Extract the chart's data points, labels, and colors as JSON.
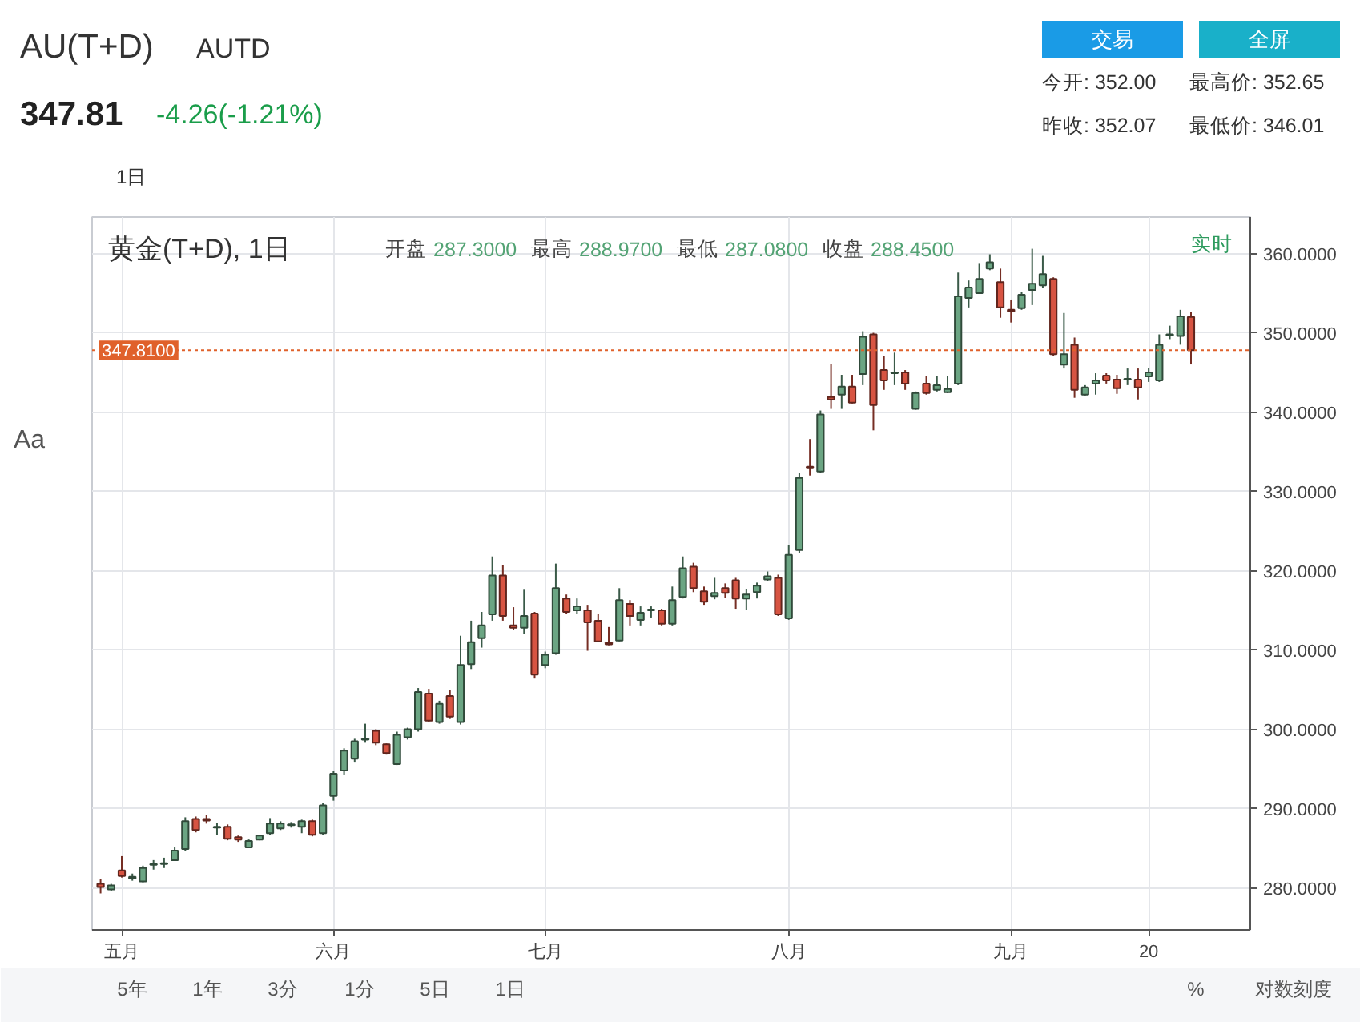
{
  "chart_data": {
    "type": "candlestick",
    "title": "AU(T+D)",
    "subtitle": "AUTD",
    "annotations": [
      "347.81",
      "-4.26(-1.21%)",
      "交易",
      "全屏",
      "今开: 352.00",
      "最高价: 352.65",
      "昨收: 352.07",
      "最低价: 346.01",
      "1日",
      "黄金(T+D), 1日",
      "开盘 287.3000 最高 288.9700 最低 287.0800 收盘 288.4500",
      "实时",
      "Aa",
      "5年",
      "1年",
      "3分",
      "1分",
      "5日",
      "1日",
      "%",
      "对数刻度"
    ],
    "categories": [
      null,
      null,
      "五月",
      null,
      null,
      null,
      null,
      null,
      null,
      null,
      null,
      null,
      null,
      null,
      null,
      null,
      null,
      null,
      null,
      null,
      null,
      null,
      "六月",
      null,
      null,
      null,
      null,
      null,
      null,
      null,
      null,
      null,
      null,
      null,
      null,
      null,
      null,
      null,
      null,
      null,
      null,
      null,
      "七月",
      null,
      null,
      null,
      null,
      null,
      null,
      null,
      null,
      null,
      null,
      null,
      null,
      null,
      null,
      null,
      null,
      null,
      null,
      null,
      null,
      null,
      null,
      "八月",
      null,
      null,
      null,
      null,
      null,
      null,
      null,
      null,
      null,
      null,
      null,
      null,
      null,
      null,
      null,
      null,
      null,
      null,
      null,
      null,
      "九月",
      null,
      null,
      null,
      null,
      null,
      null,
      null,
      null,
      null,
      null,
      null,
      null,
      "20",
      null,
      null,
      null,
      null
    ],
    "ohlc": [
      [
        280.5,
        281.1,
        279.3,
        280.1
      ],
      [
        279.8,
        280.5,
        279.6,
        280.3
      ],
      [
        282.2,
        284.0,
        281.3,
        281.5
      ],
      [
        281.2,
        281.8,
        280.9,
        281.4
      ],
      [
        280.8,
        282.8,
        280.7,
        282.5
      ],
      [
        282.9,
        283.5,
        282.3,
        283.0
      ],
      [
        283.0,
        283.8,
        282.5,
        283.1
      ],
      [
        283.5,
        285.1,
        283.4,
        284.7
      ],
      [
        284.9,
        288.9,
        284.7,
        288.4
      ],
      [
        288.7,
        289.0,
        287.0,
        287.3
      ],
      [
        288.7,
        289.2,
        288.1,
        288.5
      ],
      [
        287.6,
        288.2,
        286.7,
        287.7
      ],
      [
        287.7,
        288.0,
        286.0,
        286.2
      ],
      [
        286.4,
        286.6,
        285.8,
        286.1
      ],
      [
        285.1,
        286.1,
        285.0,
        285.9
      ],
      [
        286.1,
        286.7,
        286.0,
        286.6
      ],
      [
        286.9,
        288.8,
        286.7,
        288.1
      ],
      [
        287.5,
        288.4,
        287.3,
        288.1
      ],
      [
        287.9,
        288.3,
        287.6,
        288.0
      ],
      [
        287.7,
        288.6,
        286.9,
        288.4
      ],
      [
        288.4,
        288.6,
        286.5,
        286.7
      ],
      [
        286.9,
        290.7,
        286.7,
        290.4
      ],
      [
        291.6,
        294.8,
        291.0,
        294.4
      ],
      [
        294.8,
        297.6,
        294.3,
        297.3
      ],
      [
        296.3,
        298.8,
        295.8,
        298.5
      ],
      [
        298.7,
        300.7,
        298.3,
        298.8
      ],
      [
        299.8,
        300.0,
        298.0,
        298.3
      ],
      [
        298.1,
        298.2,
        296.8,
        297.0
      ],
      [
        295.6,
        299.7,
        295.5,
        299.3
      ],
      [
        299.0,
        300.2,
        298.7,
        300.0
      ],
      [
        300.0,
        305.2,
        299.7,
        304.7
      ],
      [
        304.5,
        305.1,
        300.9,
        301.1
      ],
      [
        300.9,
        303.6,
        300.7,
        303.2
      ],
      [
        304.2,
        304.9,
        301.3,
        301.6
      ],
      [
        300.9,
        311.8,
        300.6,
        308.1
      ],
      [
        308.2,
        313.7,
        307.6,
        311.0
      ],
      [
        311.5,
        314.8,
        310.3,
        313.1
      ],
      [
        314.5,
        321.8,
        313.7,
        319.4
      ],
      [
        319.4,
        320.7,
        313.7,
        314.3
      ],
      [
        313.1,
        315.4,
        312.5,
        312.8
      ],
      [
        312.8,
        317.6,
        312.0,
        314.3
      ],
      [
        314.6,
        314.8,
        306.4,
        306.9
      ],
      [
        308.1,
        309.8,
        307.7,
        309.4
      ],
      [
        309.6,
        320.9,
        309.4,
        317.8
      ],
      [
        316.5,
        317.0,
        314.6,
        314.8
      ],
      [
        315.0,
        316.5,
        314.5,
        315.5
      ],
      [
        315.0,
        315.7,
        309.9,
        313.5
      ],
      [
        313.7,
        314.5,
        311.0,
        311.1
      ],
      [
        310.9,
        312.9,
        310.6,
        310.7
      ],
      [
        311.2,
        317.8,
        311.1,
        316.3
      ],
      [
        315.8,
        316.3,
        313.1,
        314.3
      ],
      [
        313.8,
        315.5,
        313.1,
        314.7
      ],
      [
        315.0,
        315.5,
        314.1,
        315.1
      ],
      [
        315.0,
        315.2,
        313.1,
        313.3
      ],
      [
        313.3,
        318.0,
        313.1,
        316.3
      ],
      [
        316.7,
        321.8,
        316.5,
        320.3
      ],
      [
        320.5,
        321.0,
        317.3,
        317.8
      ],
      [
        317.4,
        318.0,
        315.7,
        316.1
      ],
      [
        316.8,
        319.1,
        316.4,
        317.2
      ],
      [
        317.8,
        318.4,
        316.6,
        317.2
      ],
      [
        318.8,
        319.1,
        315.2,
        316.5
      ],
      [
        316.5,
        317.7,
        315.0,
        317.0
      ],
      [
        317.3,
        318.5,
        316.5,
        318.1
      ],
      [
        318.9,
        319.9,
        318.7,
        319.3
      ],
      [
        319.1,
        319.5,
        314.3,
        314.5
      ],
      [
        314.0,
        323.2,
        313.8,
        322.0
      ],
      [
        322.6,
        332.3,
        322.2,
        331.7
      ],
      [
        333.1,
        336.6,
        332.0,
        333.0
      ],
      [
        332.5,
        340.2,
        332.3,
        339.7
      ],
      [
        341.9,
        346.1,
        340.4,
        341.6
      ],
      [
        342.2,
        344.7,
        340.4,
        343.2
      ],
      [
        343.2,
        344.7,
        341.1,
        341.2
      ],
      [
        344.8,
        350.2,
        343.4,
        349.5
      ],
      [
        349.8,
        350.0,
        337.7,
        340.9
      ],
      [
        345.3,
        347.1,
        342.8,
        344.0
      ],
      [
        344.9,
        347.5,
        343.4,
        345.0
      ],
      [
        345.0,
        345.3,
        342.8,
        343.6
      ],
      [
        340.4,
        342.6,
        340.3,
        342.4
      ],
      [
        343.6,
        344.5,
        342.2,
        342.4
      ],
      [
        342.8,
        344.5,
        342.6,
        343.4
      ],
      [
        342.5,
        344.5,
        342.4,
        342.9
      ],
      [
        343.6,
        357.6,
        343.4,
        354.6
      ],
      [
        354.4,
        356.6,
        353.2,
        355.7
      ],
      [
        355.0,
        358.8,
        354.9,
        356.8
      ],
      [
        358.1,
        359.9,
        357.9,
        358.9
      ],
      [
        356.4,
        358.1,
        351.9,
        353.2
      ],
      [
        352.9,
        354.2,
        351.3,
        352.7
      ],
      [
        353.1,
        355.2,
        352.9,
        354.8
      ],
      [
        355.4,
        360.6,
        353.5,
        356.2
      ],
      [
        356.0,
        359.7,
        355.7,
        357.4
      ],
      [
        356.8,
        357.0,
        347.1,
        347.3
      ],
      [
        346.0,
        352.5,
        345.5,
        347.3
      ],
      [
        348.5,
        349.4,
        341.8,
        342.8
      ],
      [
        342.2,
        343.4,
        342.1,
        343.1
      ],
      [
        343.6,
        344.9,
        342.2,
        344.0
      ],
      [
        344.6,
        344.9,
        343.6,
        344.0
      ],
      [
        344.1,
        344.7,
        342.3,
        343.0
      ],
      [
        344.1,
        345.5,
        343.4,
        344.2
      ],
      [
        344.1,
        345.5,
        341.6,
        343.1
      ],
      [
        344.5,
        345.6,
        343.8,
        345.0
      ],
      [
        344.0,
        349.8,
        343.8,
        348.5
      ],
      [
        349.7,
        350.9,
        349.2,
        349.8
      ],
      [
        349.6,
        352.9,
        348.5,
        352.07
      ],
      [
        352.0,
        352.65,
        346.01,
        347.81
      ]
    ],
    "colors": [
      "#d75442",
      "#6ba583",
      "#d75442",
      "#6ba583",
      "#6ba583",
      "#6ba583",
      "#6ba583",
      "#6ba583",
      "#6ba583",
      "#d75442",
      "#d75442",
      "#6ba583",
      "#d75442",
      "#d75442",
      "#6ba583",
      "#6ba583",
      "#6ba583",
      "#6ba583",
      "#6ba583",
      "#6ba583",
      "#d75442",
      "#6ba583",
      "#6ba583",
      "#6ba583",
      "#6ba583",
      "#6ba583",
      "#d75442",
      "#d75442",
      "#6ba583",
      "#6ba583",
      "#6ba583",
      "#d75442",
      "#6ba583",
      "#d75442",
      "#6ba583",
      "#6ba583",
      "#6ba583",
      "#6ba583",
      "#d75442",
      "#d75442",
      "#6ba583",
      "#d75442",
      "#6ba583",
      "#6ba583",
      "#d75442",
      "#6ba583",
      "#d75442",
      "#d75442",
      "#d75442",
      "#6ba583",
      "#d75442",
      "#6ba583",
      "#6ba583",
      "#d75442",
      "#6ba583",
      "#6ba583",
      "#d75442",
      "#d75442",
      "#6ba583",
      "#d75442",
      "#d75442",
      "#6ba583",
      "#6ba583",
      "#6ba583",
      "#d75442",
      "#6ba583",
      "#6ba583",
      "#d75442",
      "#6ba583",
      "#d75442",
      "#6ba583",
      "#d75442",
      "#6ba583",
      "#d75442",
      "#d75442",
      "#6ba583",
      "#d75442",
      "#6ba583",
      "#d75442",
      "#6ba583",
      "#6ba583",
      "#6ba583",
      "#6ba583",
      "#6ba583",
      "#6ba583",
      "#d75442",
      "#d75442",
      "#6ba583",
      "#6ba583",
      "#6ba583",
      "#d75442",
      "#6ba583",
      "#d75442",
      "#6ba583",
      "#6ba583",
      "#d75442",
      "#d75442",
      "#6ba583",
      "#d75442",
      "#6ba583",
      "#6ba583",
      "#6ba583",
      "#6ba583",
      "#d75442"
    ],
    "ylim": [
      274.7,
      364.6
    ],
    "yticks": [
      {
        "value": 280,
        "label": "280.0000"
      },
      {
        "value": 290,
        "label": "290.0000"
      },
      {
        "value": 300,
        "label": "300.0000"
      },
      {
        "value": 310,
        "label": "310.0000"
      },
      {
        "value": 320,
        "label": "320.0000"
      },
      {
        "value": 330,
        "label": "330.0000"
      },
      {
        "value": 340,
        "label": "340.0000"
      },
      {
        "value": 350,
        "label": "350.0000"
      },
      {
        "value": 360,
        "label": "360.0000"
      }
    ],
    "grid": true,
    "ref_lines": [
      {
        "axis": "y",
        "value": 347.81,
        "label": "347.8100",
        "color": "#e0612b",
        "line_style": "dotted"
      }
    ]
  }
}
